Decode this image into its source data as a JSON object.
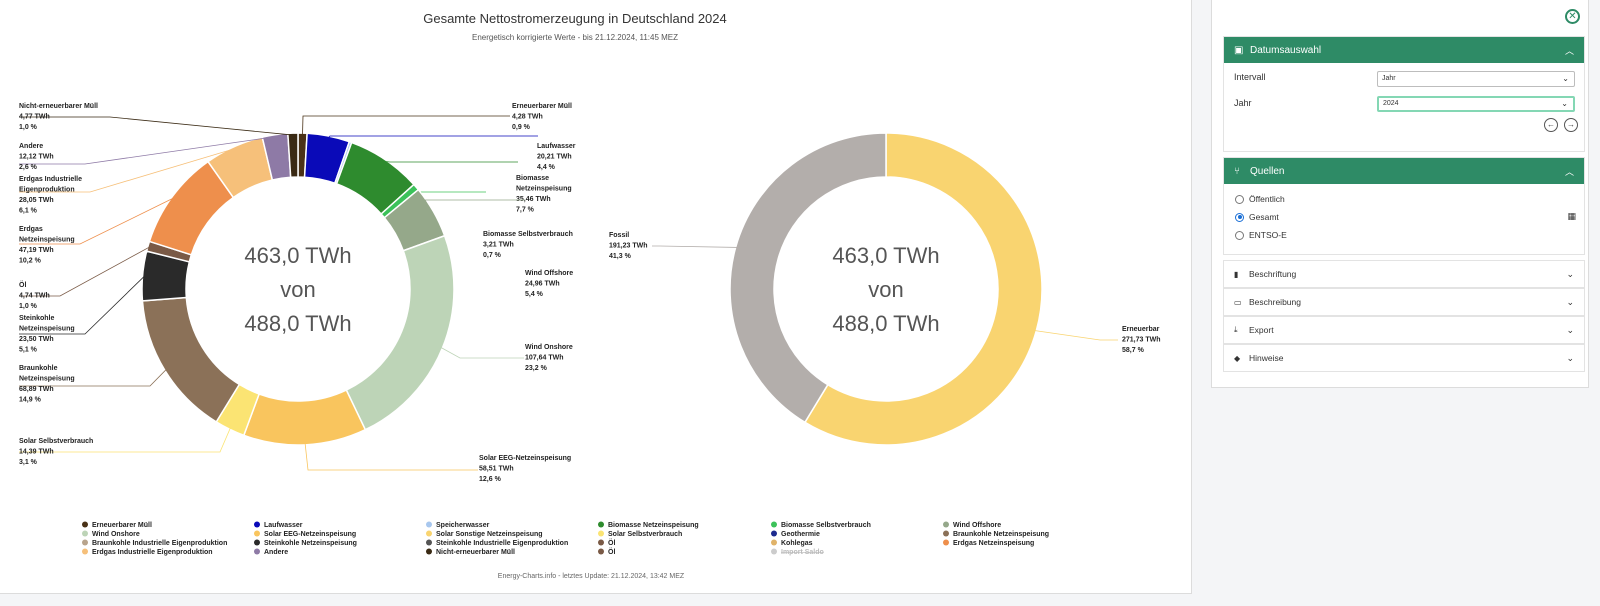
{
  "chart_data": [
    {
      "type": "pie",
      "title": "Gesamte Nettostromerzeugung in Deutschland 2024",
      "subtitle": "Energetisch korrigierte Werte - bis 21.12.2024, 11:45 MEZ",
      "center_text": [
        "463,0 TWh",
        "von",
        "488,0 TWh"
      ],
      "slices": [
        {
          "name": "Erneuerbarer Müll",
          "value_label": "4,28 TWh",
          "percent_label": "0,9 %",
          "value": 4.28,
          "color": "#4a3217"
        },
        {
          "name": "Laufwasser",
          "value_label": "20,21 TWh",
          "percent_label": "4,4 %",
          "value": 20.21,
          "color": "#0a0ab8"
        },
        {
          "name": "Speicherwasser",
          "value_label": "",
          "percent_label": "",
          "value": 1.2,
          "color": "#a8c7ee"
        },
        {
          "name": "Biomasse Netzeinspeisung",
          "value_label": "35,46 TWh",
          "percent_label": "7,7 %",
          "value": 35.46,
          "color": "#2e8b2e"
        },
        {
          "name": "Biomasse Selbstverbrauch",
          "value_label": "3,21 TWh",
          "percent_label": "0,7 %",
          "value": 3.21,
          "color": "#3cc25a"
        },
        {
          "name": "Wind Offshore",
          "value_label": "24,96 TWh",
          "percent_label": "5,4 %",
          "value": 24.96,
          "color": "#95a88a"
        },
        {
          "name": "Wind Onshore",
          "value_label": "107,64 TWh",
          "percent_label": "23,2 %",
          "value": 107.64,
          "color": "#bdd4b7"
        },
        {
          "name": "Solar EEG-Netzeinspeisung",
          "value_label": "58,51 TWh",
          "percent_label": "12,6 %",
          "value": 58.51,
          "color": "#f9c55e"
        },
        {
          "name": "Solar Selbstverbrauch",
          "value_label": "14,39 TWh",
          "percent_label": "3,1 %",
          "value": 14.39,
          "color": "#fbe473"
        },
        {
          "name": "Braunkohle Netzeinspeisung",
          "value_label": "68,89 TWh",
          "percent_label": "14,9 %",
          "value": 68.89,
          "color": "#8b7158"
        },
        {
          "name": "Steinkohle Netzeinspeisung",
          "value_label": "23,50 TWh",
          "percent_label": "5,1 %",
          "value": 23.5,
          "color": "#2a2a2a"
        },
        {
          "name": "Öl",
          "value_label": "4,74 TWh",
          "percent_label": "1,0 %",
          "value": 4.74,
          "color": "#7a5a46"
        },
        {
          "name": "Erdgas Netzeinspeisung",
          "value_label": "47,19 TWh",
          "percent_label": "10,2 %",
          "value": 47.19,
          "color": "#ee8f4c"
        },
        {
          "name": "Erdgas Industrielle Eigenproduktion",
          "value_label": "28,05 TWh",
          "percent_label": "6,1 %",
          "value": 28.05,
          "color": "#f6c07a"
        },
        {
          "name": "Andere",
          "value_label": "12,12 TWh",
          "percent_label": "2,6 %",
          "value": 12.12,
          "color": "#8e7aa6"
        },
        {
          "name": "Nicht-erneuerbarer Müll",
          "value_label": "4,77 TWh",
          "percent_label": "1,0 %",
          "value": 4.77,
          "color": "#3a2a14"
        }
      ]
    },
    {
      "type": "pie",
      "title": "",
      "center_text": [
        "463,0 TWh",
        "von",
        "488,0 TWh"
      ],
      "slices": [
        {
          "name": "Erneuerbar",
          "value_label": "271,73 TWh",
          "percent_label": "58,7 %",
          "value": 271.73,
          "color": "#f9d470"
        },
        {
          "name": "Fossil",
          "value_label": "191,23 TWh",
          "percent_label": "41,3 %",
          "value": 191.23,
          "color": "#b3aeab"
        }
      ]
    }
  ],
  "legend": {
    "rows": [
      [
        {
          "name": "Erneuerbarer Müll",
          "color": "#4a3217"
        },
        {
          "name": "Laufwasser",
          "color": "#0a0ab8"
        },
        {
          "name": "Speicherwasser",
          "color": "#a8c7ee"
        },
        {
          "name": "Biomasse Netzeinspeisung",
          "color": "#2e8b2e"
        },
        {
          "name": "Biomasse Selbstverbrauch",
          "color": "#3cc25a"
        },
        {
          "name": "Wind Offshore",
          "color": "#95a88a"
        }
      ],
      [
        {
          "name": "Wind Onshore",
          "color": "#bdd4b7"
        },
        {
          "name": "Solar EEG-Netzeinspeisung",
          "color": "#f9c55e"
        },
        {
          "name": "Solar Sonstige Netzeinspeisung",
          "color": "#f9d470"
        },
        {
          "name": "Solar Selbstverbrauch",
          "color": "#fbe473"
        },
        {
          "name": "Geothermie",
          "color": "#1d2b8f"
        },
        {
          "name": "Braunkohle Netzeinspeisung",
          "color": "#8b7158"
        }
      ],
      [
        {
          "name": "Braunkohle Industrielle Eigenproduktion",
          "color": "#b8a48c"
        },
        {
          "name": "Steinkohle Netzeinspeisung",
          "color": "#2a2a2a"
        },
        {
          "name": "Steinkohle Industrielle Eigenproduktion",
          "color": "#555555"
        },
        {
          "name": "Öl",
          "color": "#7a5a46"
        },
        {
          "name": "Kohlegas",
          "color": "#e0b36a"
        },
        {
          "name": "Erdgas Netzeinspeisung",
          "color": "#ee8f4c"
        }
      ],
      [
        {
          "name": "Erdgas Industrielle Eigenproduktion",
          "color": "#f6c07a"
        },
        {
          "name": "Andere",
          "color": "#8e7aa6"
        },
        {
          "name": "Nicht-erneuerbarer Müll",
          "color": "#3a2a14"
        },
        {
          "name": "Öl",
          "color": "#7a5a46",
          "hidden": false
        },
        {
          "name": "Import Saldo",
          "color": "#bfbfbf",
          "hidden": true
        }
      ]
    ]
  },
  "footer": "Energy-Charts.info - letztes Update: 21.12.2024, 13:42 MEZ",
  "sidebar": {
    "date_panel": {
      "title": "Datumsauswahl",
      "interval_label": "Intervall",
      "interval_value": "Jahr",
      "year_label": "Jahr",
      "year_value": "2024"
    },
    "sources_panel": {
      "title": "Quellen",
      "options": [
        "Öffentlich",
        "Gesamt",
        "ENTSO-E"
      ],
      "selected": "Gesamt"
    },
    "collapsed_panels": [
      "Beschriftung",
      "Beschreibung",
      "Export",
      "Hinweise"
    ]
  }
}
